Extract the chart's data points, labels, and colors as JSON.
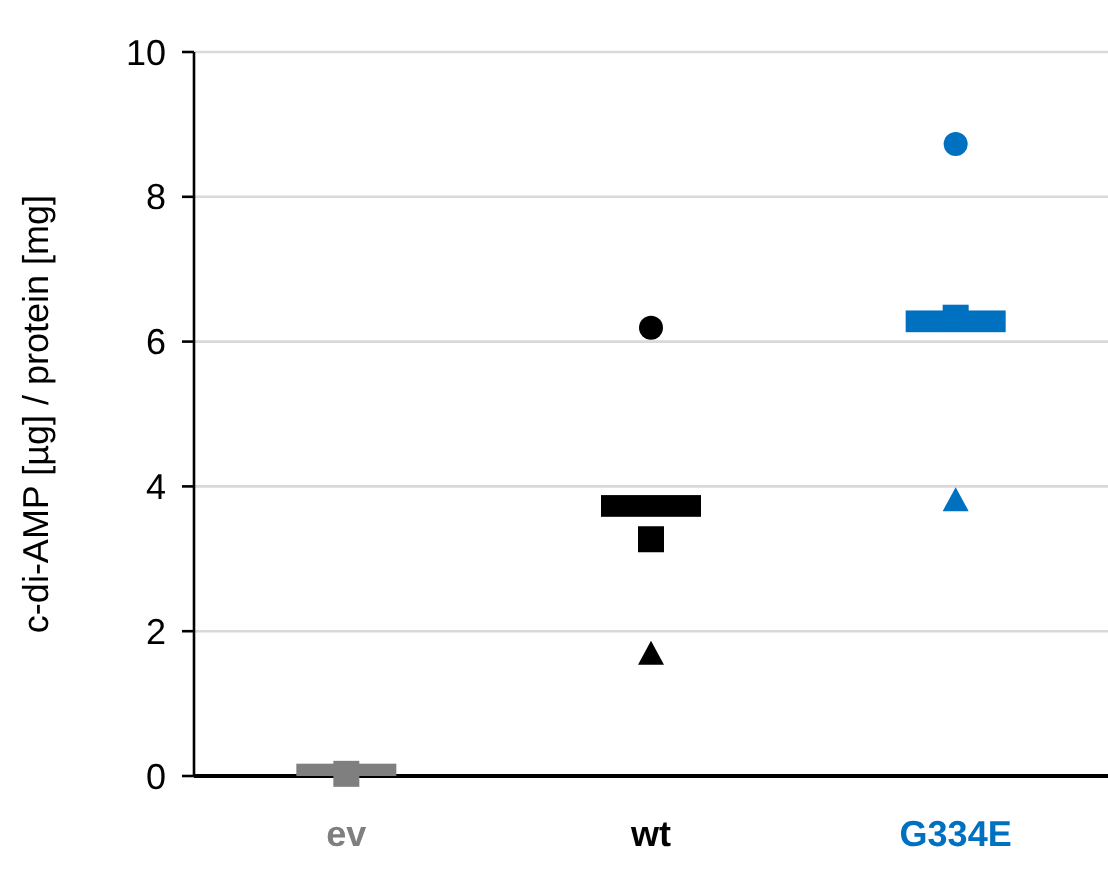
{
  "chart_data": {
    "type": "scatter",
    "ylabel": "c-di-AMP [µg] / protein [mg]",
    "categories": [
      "ev",
      "wt",
      "G334E"
    ],
    "ylim": [
      0,
      10
    ],
    "yticks": [
      0,
      2,
      4,
      6,
      8,
      10
    ],
    "grid": "y",
    "series": [
      {
        "type": "bar",
        "colors": [
          "#7f7f7f",
          "#000000",
          "#0070c0"
        ],
        "base": [
          0,
          3.58,
          6.13
        ],
        "values": [
          0.17,
          0.3,
          0.3
        ]
      },
      {
        "marker": "circle",
        "colors": [
          null,
          "#000000",
          "#0070c0"
        ],
        "values": [
          null,
          6.19,
          8.73
        ]
      },
      {
        "marker": "square",
        "colors": [
          "#7f7f7f",
          "#000000",
          "#0070c0"
        ],
        "values": [
          0.03,
          3.27,
          6.33
        ]
      },
      {
        "marker": "triangle",
        "colors": [
          null,
          "#000000",
          "#0070c0"
        ],
        "values": [
          null,
          1.69,
          3.81
        ]
      }
    ]
  }
}
